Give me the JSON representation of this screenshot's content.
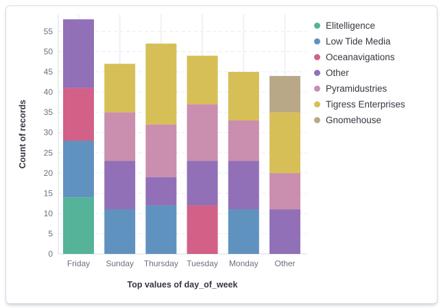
{
  "panel": {
    "background": "#ffffff",
    "border_color": "#d3dae6"
  },
  "chart_data": {
    "type": "bar",
    "stacked": true,
    "title": "",
    "xlabel": "Top values of day_of_week",
    "ylabel": "Count of records",
    "categories": [
      "Friday",
      "Sunday",
      "Thursday",
      "Tuesday",
      "Monday",
      "Other"
    ],
    "series": [
      {
        "name": "Elitelligence",
        "color": "#54B399",
        "values": [
          14,
          0,
          0,
          0,
          0,
          0
        ]
      },
      {
        "name": "Low Tide Media",
        "color": "#6092C0",
        "values": [
          14,
          11,
          12,
          0,
          11,
          0
        ]
      },
      {
        "name": "Oceanavigations",
        "color": "#D36086",
        "values": [
          13,
          0,
          0,
          12,
          0,
          0
        ]
      },
      {
        "name": "Other",
        "color": "#9170B8",
        "values": [
          17,
          12,
          7,
          11,
          12,
          11
        ]
      },
      {
        "name": "Pyramidustries",
        "color": "#CA8EAE",
        "values": [
          0,
          12,
          13,
          14,
          10,
          9
        ]
      },
      {
        "name": "Tigress Enterprises",
        "color": "#D6BF57",
        "values": [
          0,
          12,
          20,
          12,
          12,
          15
        ]
      },
      {
        "name": "Gnomehouse",
        "color": "#B9A888",
        "values": [
          0,
          0,
          0,
          0,
          0,
          9
        ]
      }
    ],
    "totals": [
      58,
      47,
      52,
      49,
      45,
      44
    ],
    "ylim": [
      0,
      58
    ],
    "y_ticks": [
      0,
      5,
      10,
      15,
      20,
      25,
      30,
      35,
      40,
      45,
      50,
      55
    ],
    "grid": "horizontal-dashed",
    "legend_position": "right",
    "gridline_color": "#e6e9f1",
    "band_line_color": "#eef1f7",
    "axis_line_color": "#d8dde6",
    "tick_label_color": "#69707d",
    "axis_title_color": "#343741"
  }
}
